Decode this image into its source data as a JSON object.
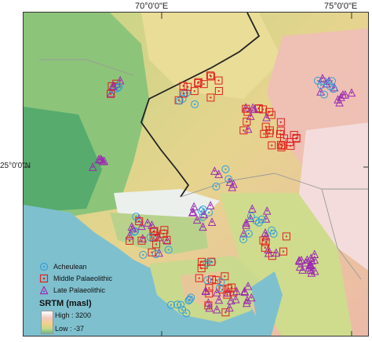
{
  "map": {
    "lon_labels": [
      "70°0'0\"E",
      "75°0'0\"E"
    ],
    "lat_label": "25°0'0\"N",
    "colors": {
      "sea": "#7fc0cf",
      "lowland": "#4fa86f",
      "plain": "#c8d98a",
      "upland": "#efd493",
      "hills": "#ecb7a5",
      "high": "#f6e6e8",
      "border": "#222222",
      "state": "#a0a0a0"
    }
  },
  "legend": {
    "acheulean": "Acheulean",
    "middle": "Middle Palaeolithic",
    "late": "Late Palaeolithic",
    "srtm_title": "SRTM (masl)",
    "high": "High : 3200",
    "low": "Low : -37",
    "colors": {
      "acheulean": "#2e9fd9",
      "middle": "#e0201e",
      "late": "#9b2bb0"
    }
  }
}
